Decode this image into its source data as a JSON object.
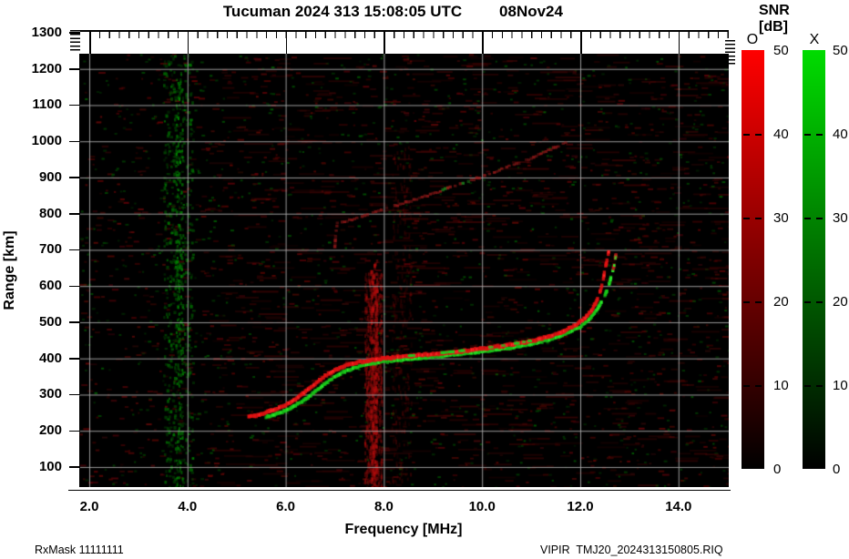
{
  "header": {
    "title": "Tucuman 2024 313 15:08:05 UTC",
    "date": "08Nov24"
  },
  "axes": {
    "x_label": "Frequency [MHz]",
    "y_label": "Range [km]",
    "x_ticks": [
      2.0,
      4.0,
      6.0,
      8.0,
      10.0,
      12.0,
      14.0
    ],
    "x_tick_labels": [
      "2.0",
      "4.0",
      "6.0",
      "8.0",
      "10.0",
      "12.0",
      "14.0"
    ],
    "y_ticks": [
      100,
      200,
      300,
      400,
      500,
      600,
      700,
      800,
      900,
      1000,
      1100,
      1200,
      1300
    ],
    "y_tick_labels": [
      "100",
      "200",
      "300",
      "400",
      "500",
      "600",
      "700",
      "800",
      "900",
      "1000",
      "1100",
      "1200",
      "1300"
    ]
  },
  "colorbar": {
    "title": "SNR [dB]",
    "o_label": "O",
    "x_label": "X",
    "ticks": [
      0,
      10,
      20,
      30,
      40,
      50
    ],
    "tick_labels": [
      "0",
      "10",
      "20",
      "30",
      "40",
      "50"
    ],
    "o_top_color": "#ff0000",
    "x_top_color": "#00dc00",
    "bottom_color": "#000000"
  },
  "footer": {
    "rx_mask": "RxMask 11111111",
    "file_id": "VIPIR  TMJ20_2024313150805.RIQ"
  },
  "chart_data": {
    "type": "heatmap",
    "title": "Tucuman 2024 313 15:08:05 UTC  08Nov24",
    "xlabel": "Frequency [MHz]",
    "ylabel": "Range [km]",
    "xlim": [
      1.8,
      14.85
    ],
    "ylim": [
      45,
      1242
    ],
    "grid": true,
    "background_color": "#000000",
    "gridline_color": "#8a8a8a",
    "colorbar": {
      "label": "SNR [dB]",
      "range": [
        0,
        50
      ],
      "modes": [
        {
          "name": "O",
          "color": "#ff0000"
        },
        {
          "name": "X",
          "color": "#00dc00"
        }
      ]
    },
    "series": [
      {
        "name": "O-mode F-layer trace",
        "color": "#e01414",
        "points": [
          [
            5.25,
            240
          ],
          [
            5.4,
            243
          ],
          [
            5.6,
            250
          ],
          [
            5.8,
            260
          ],
          [
            6.0,
            272
          ],
          [
            6.2,
            288
          ],
          [
            6.4,
            308
          ],
          [
            6.6,
            330
          ],
          [
            6.8,
            352
          ],
          [
            7.0,
            368
          ],
          [
            7.2,
            380
          ],
          [
            7.4,
            388
          ],
          [
            7.7,
            395
          ],
          [
            8.0,
            400
          ],
          [
            8.5,
            406
          ],
          [
            9.0,
            412
          ],
          [
            9.5,
            419
          ],
          [
            10.0,
            427
          ],
          [
            10.5,
            436
          ],
          [
            11.0,
            448
          ],
          [
            11.3,
            458
          ],
          [
            11.6,
            472
          ],
          [
            11.9,
            492
          ],
          [
            12.1,
            512
          ],
          [
            12.25,
            537
          ],
          [
            12.35,
            565
          ],
          [
            12.45,
            605
          ],
          [
            12.5,
            645
          ],
          [
            12.55,
            675
          ],
          [
            12.58,
            700
          ]
        ]
      },
      {
        "name": "X-mode F-layer trace",
        "color": "#19cd19",
        "points": [
          [
            5.6,
            238
          ],
          [
            5.8,
            246
          ],
          [
            6.0,
            256
          ],
          [
            6.2,
            270
          ],
          [
            6.4,
            288
          ],
          [
            6.6,
            308
          ],
          [
            6.8,
            330
          ],
          [
            7.0,
            350
          ],
          [
            7.2,
            364
          ],
          [
            7.4,
            374
          ],
          [
            7.6,
            382
          ],
          [
            8.0,
            391
          ],
          [
            8.5,
            398
          ],
          [
            9.0,
            404
          ],
          [
            9.5,
            411
          ],
          [
            10.0,
            419
          ],
          [
            10.5,
            428
          ],
          [
            11.0,
            440
          ],
          [
            11.4,
            453
          ],
          [
            11.7,
            468
          ],
          [
            12.0,
            488
          ],
          [
            12.2,
            510
          ],
          [
            12.35,
            538
          ],
          [
            12.5,
            572
          ],
          [
            12.6,
            612
          ],
          [
            12.68,
            652
          ],
          [
            12.73,
            692
          ]
        ]
      },
      {
        "name": "second reflection trace",
        "color": "#961919",
        "points": [
          [
            7.0,
            710
          ],
          [
            7.02,
            745
          ],
          [
            7.05,
            775
          ],
          [
            7.2,
            778
          ],
          [
            7.5,
            790
          ],
          [
            8.0,
            812
          ],
          [
            8.5,
            833
          ],
          [
            9.0,
            855
          ],
          [
            9.5,
            880
          ],
          [
            10.0,
            903
          ],
          [
            10.5,
            928
          ],
          [
            11.0,
            953
          ],
          [
            11.4,
            978
          ],
          [
            11.8,
            1003
          ]
        ]
      }
    ],
    "noise": {
      "description": "black background with sparse dark red and dark green speckle noise",
      "green_speckle_band_mhz": [
        3.5,
        4.1
      ],
      "green_dense_line_mhz": [
        3.75,
        3.9
      ],
      "red_interference_band_mhz": [
        7.6,
        7.95
      ],
      "red_interference_band2_mhz": [
        8.15,
        8.55
      ]
    }
  }
}
